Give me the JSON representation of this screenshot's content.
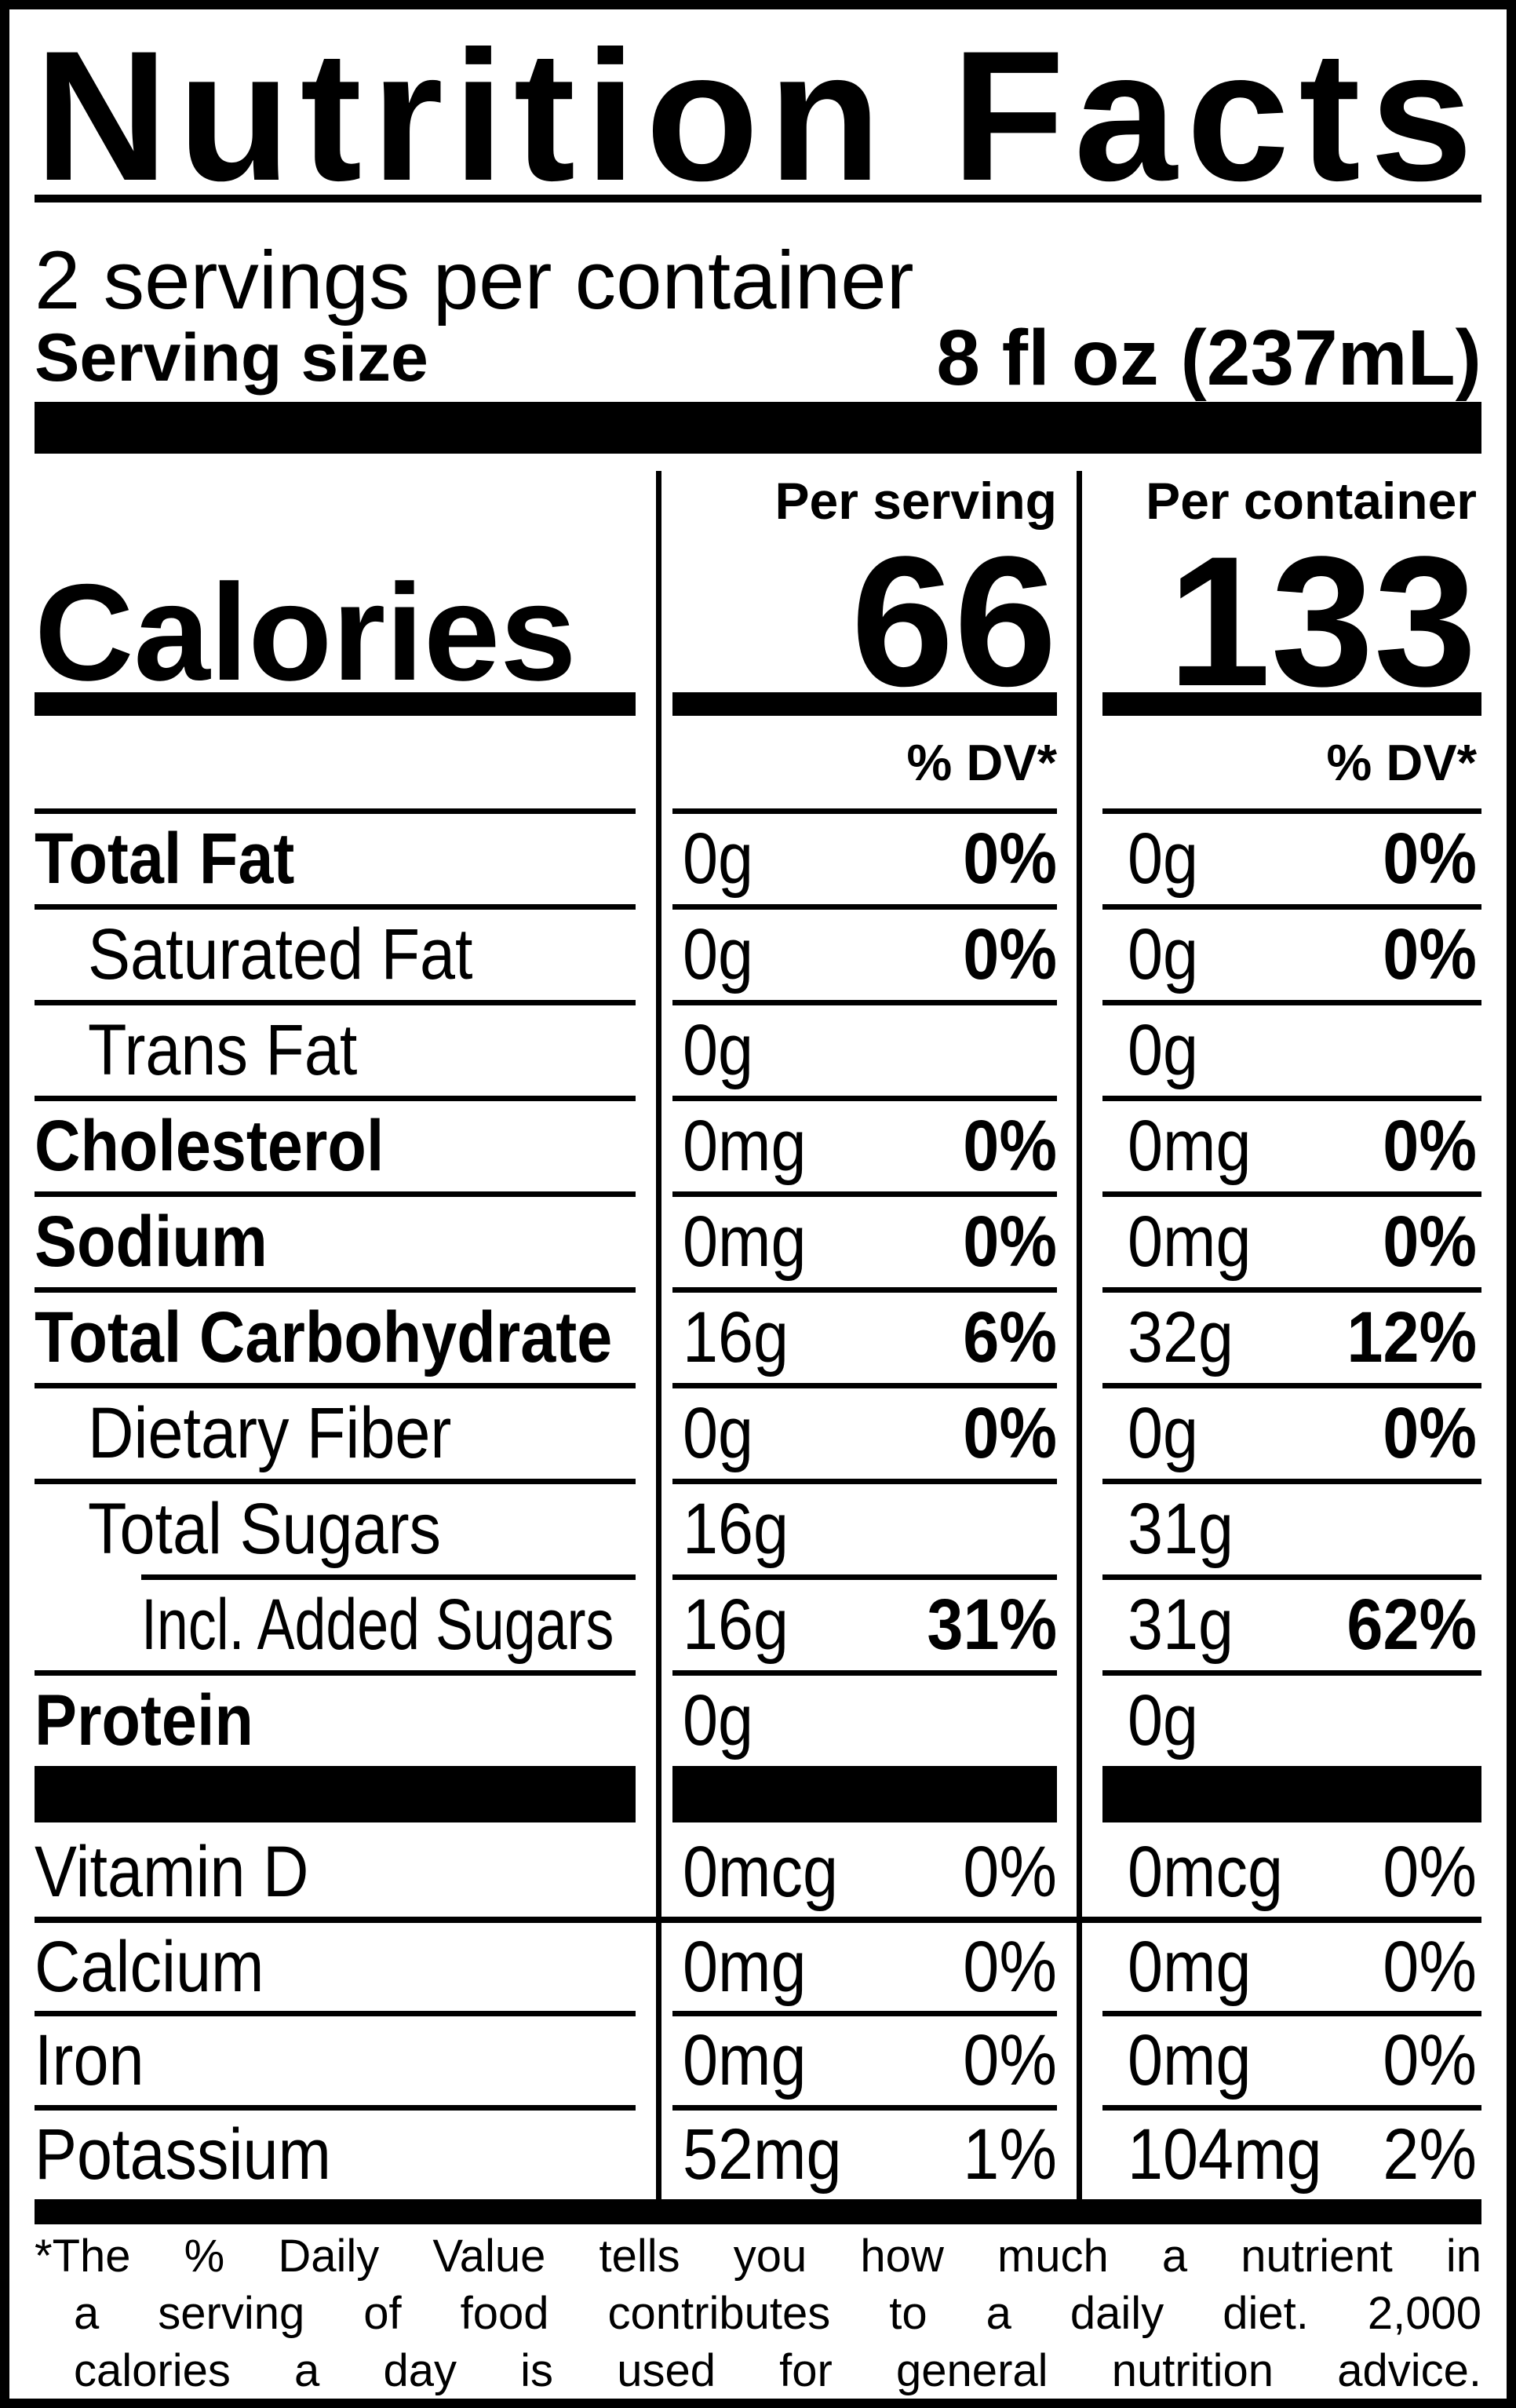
{
  "colors": {
    "ink": "#000000",
    "paper": "#ffffff"
  },
  "title": "Nutrition Facts",
  "servings_per_container": "2 servings per container",
  "serving_size": {
    "label": "Serving size",
    "value": "8 fl oz (237mL)"
  },
  "columns": {
    "per_serving": "Per serving",
    "per_container": "Per container"
  },
  "calories": {
    "label": "Calories",
    "per_serving": "66",
    "per_container": "133"
  },
  "dv_header": {
    "per_serving": "% DV*",
    "per_container": "% DV*"
  },
  "nutrients": [
    {
      "label": "Total Fat",
      "bold": true,
      "indent": 0,
      "per_serving": {
        "amount": "0g",
        "dv": "0%"
      },
      "per_container": {
        "amount": "0g",
        "dv": "0%"
      }
    },
    {
      "label": "Saturated Fat",
      "bold": false,
      "indent": 1,
      "per_serving": {
        "amount": "0g",
        "dv": "0%"
      },
      "per_container": {
        "amount": "0g",
        "dv": "0%"
      }
    },
    {
      "label": "Trans Fat",
      "bold": false,
      "indent": 1,
      "per_serving": {
        "amount": "0g",
        "dv": ""
      },
      "per_container": {
        "amount": "0g",
        "dv": ""
      }
    },
    {
      "label": "Cholesterol",
      "bold": true,
      "indent": 0,
      "per_serving": {
        "amount": "0mg",
        "dv": "0%"
      },
      "per_container": {
        "amount": "0mg",
        "dv": "0%"
      }
    },
    {
      "label": "Sodium",
      "bold": true,
      "indent": 0,
      "per_serving": {
        "amount": "0mg",
        "dv": "0%"
      },
      "per_container": {
        "amount": "0mg",
        "dv": "0%"
      }
    },
    {
      "label": "Total Carbohydrate",
      "bold": true,
      "indent": 0,
      "per_serving": {
        "amount": "16g",
        "dv": "6%"
      },
      "per_container": {
        "amount": "32g",
        "dv": "12%"
      }
    },
    {
      "label": "Dietary Fiber",
      "bold": false,
      "indent": 1,
      "per_serving": {
        "amount": "0g",
        "dv": "0%"
      },
      "per_container": {
        "amount": "0g",
        "dv": "0%"
      }
    },
    {
      "label": "Total Sugars",
      "bold": false,
      "indent": 1,
      "per_serving": {
        "amount": "16g",
        "dv": ""
      },
      "per_container": {
        "amount": "31g",
        "dv": ""
      }
    },
    {
      "label": "Incl. Added Sugars",
      "bold": false,
      "indent": 2,
      "per_serving": {
        "amount": "16g",
        "dv": "31%"
      },
      "per_container": {
        "amount": "31g",
        "dv": "62%"
      }
    },
    {
      "label": "Protein",
      "bold": true,
      "indent": 0,
      "per_serving": {
        "amount": "0g",
        "dv": ""
      },
      "per_container": {
        "amount": "0g",
        "dv": ""
      }
    }
  ],
  "vitamins": [
    {
      "label": "Vitamin D",
      "per_serving": {
        "amount": "0mcg",
        "dv": "0%"
      },
      "per_container": {
        "amount": "0mcg",
        "dv": "0%"
      }
    },
    {
      "label": "Calcium",
      "per_serving": {
        "amount": "0mg",
        "dv": "0%"
      },
      "per_container": {
        "amount": "0mg",
        "dv": "0%"
      }
    },
    {
      "label": "Iron",
      "per_serving": {
        "amount": "0mg",
        "dv": "0%"
      },
      "per_container": {
        "amount": "0mg",
        "dv": "0%"
      }
    },
    {
      "label": "Potassium",
      "per_serving": {
        "amount": "52mg",
        "dv": "1%"
      },
      "per_container": {
        "amount": "104mg",
        "dv": "2%"
      }
    }
  ],
  "footnote_lines": [
    "*The % Daily Value tells you how much a nutrient in",
    "a serving of food contributes to a daily diet. 2,000",
    "calories a day is used for general nutrition advice."
  ]
}
